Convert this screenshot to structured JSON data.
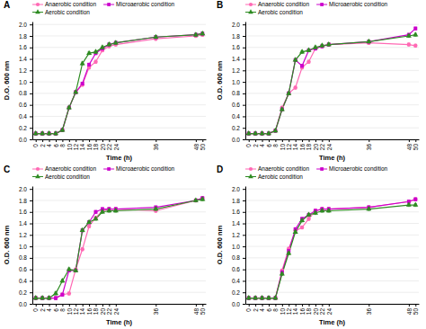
{
  "chart_data": [
    {
      "type": "line",
      "title": "A",
      "xlabel": "Time (h)",
      "ylabel": "D.O. 600 nm",
      "x": [
        0,
        2,
        4,
        6,
        8,
        10,
        12,
        14,
        16,
        18,
        20,
        22,
        24,
        36,
        48,
        50
      ],
      "xlim": [
        -1,
        51
      ],
      "xticks": [
        0,
        2,
        4,
        6,
        8,
        10,
        12,
        14,
        16,
        18,
        20,
        22,
        24,
        36,
        48,
        50
      ],
      "ylim": [
        0.0,
        2.05
      ],
      "yticks": [
        {
          "value": 0.0,
          "label": "0.0"
        },
        0.2,
        0.4,
        0.6,
        0.8,
        {
          "value": 1.0,
          "label": "1.0"
        },
        1.2,
        1.4,
        1.6,
        1.8,
        {
          "value": 2.0,
          "label": "2.0"
        }
      ],
      "grid": true,
      "legend": "top",
      "series": [
        {
          "name": "Anaerobic condition",
          "color": "#FF69B4",
          "marker": "circle",
          "values": [
            0.1,
            0.1,
            0.1,
            0.1,
            0.16,
            0.55,
            0.82,
            0.95,
            1.25,
            1.35,
            1.55,
            1.62,
            1.65,
            1.75,
            1.8,
            1.82
          ],
          "errors": [
            0.025,
            0.025,
            0.025,
            0.025,
            0.025,
            0.025,
            0.025,
            0.025,
            0.025,
            0.025,
            0.025,
            0.025,
            0.025,
            0.025,
            0.025,
            0.025
          ]
        },
        {
          "name": "Microaerobic condition",
          "color": "#CC00CC",
          "marker": "square",
          "values": [
            0.1,
            0.1,
            0.1,
            0.1,
            0.16,
            0.55,
            0.82,
            0.97,
            1.3,
            1.5,
            1.58,
            1.65,
            1.68,
            1.78,
            1.82,
            1.84
          ],
          "errors": [
            0.025,
            0.025,
            0.025,
            0.025,
            0.025,
            0.025,
            0.025,
            0.025,
            0.025,
            0.025,
            0.025,
            0.025,
            0.025,
            0.025,
            0.025,
            0.025
          ]
        },
        {
          "name": "Aerobic condition",
          "color": "#2E8B22",
          "marker": "triangle",
          "values": [
            0.1,
            0.1,
            0.1,
            0.1,
            0.16,
            0.55,
            0.82,
            1.32,
            1.5,
            1.52,
            1.6,
            1.65,
            1.68,
            1.78,
            1.82,
            1.84
          ],
          "errors": [
            0.025,
            0.025,
            0.025,
            0.025,
            0.025,
            0.025,
            0.025,
            0.025,
            0.025,
            0.025,
            0.025,
            0.025,
            0.025,
            0.025,
            0.025,
            0.025
          ]
        }
      ]
    },
    {
      "type": "line",
      "title": "B",
      "xlabel": "Time (h)",
      "ylabel": "O.D. 600 nm",
      "x": [
        0,
        2,
        4,
        6,
        8,
        10,
        12,
        14,
        16,
        18,
        20,
        22,
        24,
        36,
        48,
        50
      ],
      "xlim": [
        -1,
        51
      ],
      "xticks": [
        0,
        2,
        4,
        6,
        8,
        10,
        12,
        14,
        16,
        18,
        20,
        22,
        24,
        36,
        48,
        50
      ],
      "ylim": [
        0.0,
        2.05
      ],
      "yticks": [
        {
          "value": 0.0,
          "label": "0.0"
        },
        0.2,
        0.4,
        0.6,
        0.8,
        {
          "value": 1.0,
          "label": "1.0"
        },
        1.2,
        1.4,
        1.6,
        1.8,
        {
          "value": 2.0,
          "label": "2.0"
        }
      ],
      "grid": true,
      "legend": "top",
      "series": [
        {
          "name": "Anaerobic condition",
          "color": "#FF69B4",
          "marker": "circle",
          "values": [
            0.1,
            0.1,
            0.1,
            0.1,
            0.15,
            0.55,
            0.8,
            0.9,
            1.25,
            1.35,
            1.58,
            1.62,
            1.65,
            1.68,
            1.65,
            1.63
          ],
          "errors": [
            0.025,
            0.025,
            0.025,
            0.025,
            0.025,
            0.025,
            0.025,
            0.025,
            0.025,
            0.025,
            0.025,
            0.025,
            0.025,
            0.025,
            0.025,
            0.025
          ]
        },
        {
          "name": "Microaerobic condition",
          "color": "#CC00CC",
          "marker": "square",
          "values": [
            0.1,
            0.1,
            0.1,
            0.1,
            0.15,
            0.52,
            0.8,
            1.38,
            1.28,
            1.55,
            1.58,
            1.62,
            1.65,
            1.7,
            1.82,
            1.93
          ],
          "errors": [
            0.025,
            0.025,
            0.025,
            0.025,
            0.025,
            0.025,
            0.025,
            0.025,
            0.025,
            0.025,
            0.025,
            0.025,
            0.025,
            0.025,
            0.025,
            0.025
          ]
        },
        {
          "name": "Aerobic condition",
          "color": "#2E8B22",
          "marker": "triangle",
          "values": [
            0.1,
            0.1,
            0.1,
            0.1,
            0.15,
            0.52,
            0.8,
            1.38,
            1.52,
            1.55,
            1.6,
            1.63,
            1.65,
            1.7,
            1.8,
            1.82
          ],
          "errors": [
            0.025,
            0.025,
            0.025,
            0.025,
            0.025,
            0.025,
            0.025,
            0.025,
            0.025,
            0.025,
            0.025,
            0.025,
            0.025,
            0.025,
            0.025,
            0.025
          ]
        }
      ]
    },
    {
      "type": "line",
      "title": "C",
      "xlabel": "Time (h)",
      "ylabel": "O.D. 600 nm",
      "x": [
        0,
        2,
        4,
        6,
        8,
        10,
        12,
        14,
        16,
        18,
        20,
        22,
        24,
        36,
        48,
        50
      ],
      "xlim": [
        -1,
        51
      ],
      "xticks": [
        0,
        2,
        4,
        6,
        8,
        10,
        12,
        14,
        16,
        18,
        20,
        22,
        24,
        36,
        48,
        50
      ],
      "ylim": [
        0.0,
        2.05
      ],
      "yticks": [
        {
          "value": 0.0,
          "label": "0.0"
        },
        0.2,
        0.4,
        0.6,
        0.8,
        {
          "value": 1.0,
          "label": "1.0"
        },
        1.2,
        1.4,
        1.6,
        1.8,
        {
          "value": 2.0,
          "label": "2.0"
        }
      ],
      "grid": true,
      "legend": "top",
      "series": [
        {
          "name": "Anaerobic condition",
          "color": "#FF69B4",
          "marker": "circle",
          "values": [
            0.1,
            0.1,
            0.1,
            0.1,
            0.16,
            0.18,
            0.6,
            0.95,
            1.35,
            1.5,
            1.62,
            1.65,
            1.65,
            1.62,
            1.8,
            1.84
          ],
          "errors": [
            0.025,
            0.025,
            0.025,
            0.025,
            0.025,
            0.025,
            0.025,
            0.025,
            0.025,
            0.025,
            0.025,
            0.025,
            0.025,
            0.025,
            0.025,
            0.025
          ]
        },
        {
          "name": "Microaerobic condition",
          "color": "#CC00CC",
          "marker": "square",
          "values": [
            0.1,
            0.1,
            0.1,
            0.1,
            0.16,
            0.58,
            0.58,
            1.28,
            1.42,
            1.6,
            1.65,
            1.65,
            1.65,
            1.68,
            1.8,
            1.84
          ],
          "errors": [
            0.025,
            0.025,
            0.025,
            0.025,
            0.025,
            0.025,
            0.025,
            0.025,
            0.025,
            0.025,
            0.025,
            0.025,
            0.025,
            0.025,
            0.025,
            0.025
          ]
        },
        {
          "name": "Aerobic condition",
          "color": "#2E8B22",
          "marker": "triangle",
          "values": [
            0.1,
            0.1,
            0.1,
            0.18,
            0.4,
            0.6,
            0.58,
            1.28,
            1.42,
            1.48,
            1.6,
            1.62,
            1.62,
            1.65,
            1.8,
            1.82
          ],
          "errors": [
            0.025,
            0.025,
            0.025,
            0.025,
            0.025,
            0.025,
            0.025,
            0.025,
            0.025,
            0.025,
            0.025,
            0.025,
            0.025,
            0.025,
            0.025,
            0.025
          ]
        }
      ]
    },
    {
      "type": "line",
      "title": "D",
      "xlabel": "Time (h)",
      "ylabel": "O.D. 600 nm",
      "x": [
        0,
        2,
        4,
        6,
        8,
        10,
        12,
        14,
        16,
        18,
        20,
        22,
        24,
        36,
        48,
        50
      ],
      "xlim": [
        -1,
        51
      ],
      "xticks": [
        0,
        2,
        4,
        6,
        8,
        10,
        12,
        14,
        16,
        18,
        20,
        22,
        24,
        36,
        48,
        50
      ],
      "ylim": [
        0.0,
        2.05
      ],
      "yticks": [
        {
          "value": 0.0,
          "label": "0.0"
        },
        0.2,
        0.4,
        0.6,
        0.8,
        {
          "value": 1.0,
          "label": "1.0"
        },
        1.2,
        1.4,
        1.6,
        1.8,
        {
          "value": 2.0,
          "label": "2.0"
        }
      ],
      "grid": true,
      "legend": "top",
      "series": [
        {
          "name": "Anaerobic condition",
          "color": "#FF69B4",
          "marker": "circle",
          "values": [
            0.1,
            0.1,
            0.1,
            0.1,
            0.1,
            0.58,
            0.96,
            1.27,
            1.33,
            1.48,
            1.62,
            1.65,
            1.65,
            1.68,
            1.78,
            1.82
          ],
          "errors": [
            0.025,
            0.025,
            0.025,
            0.025,
            0.025,
            0.025,
            0.025,
            0.025,
            0.025,
            0.025,
            0.025,
            0.025,
            0.025,
            0.025,
            0.025,
            0.025
          ]
        },
        {
          "name": "Microaerobic condition",
          "color": "#CC00CC",
          "marker": "square",
          "values": [
            0.1,
            0.1,
            0.1,
            0.1,
            0.1,
            0.55,
            0.92,
            1.3,
            1.48,
            1.55,
            1.62,
            1.65,
            1.65,
            1.68,
            1.78,
            1.82
          ],
          "errors": [
            0.025,
            0.025,
            0.025,
            0.025,
            0.025,
            0.025,
            0.025,
            0.025,
            0.025,
            0.025,
            0.025,
            0.025,
            0.025,
            0.025,
            0.025,
            0.025
          ]
        },
        {
          "name": "Aerobic condition",
          "color": "#2E8B22",
          "marker": "triangle",
          "values": [
            0.1,
            0.1,
            0.1,
            0.1,
            0.1,
            0.52,
            0.88,
            1.25,
            1.45,
            1.55,
            1.58,
            1.62,
            1.62,
            1.65,
            1.72,
            1.72
          ],
          "errors": [
            0.025,
            0.025,
            0.025,
            0.025,
            0.025,
            0.025,
            0.025,
            0.025,
            0.025,
            0.025,
            0.025,
            0.025,
            0.025,
            0.025,
            0.025,
            0.025
          ]
        }
      ]
    }
  ]
}
